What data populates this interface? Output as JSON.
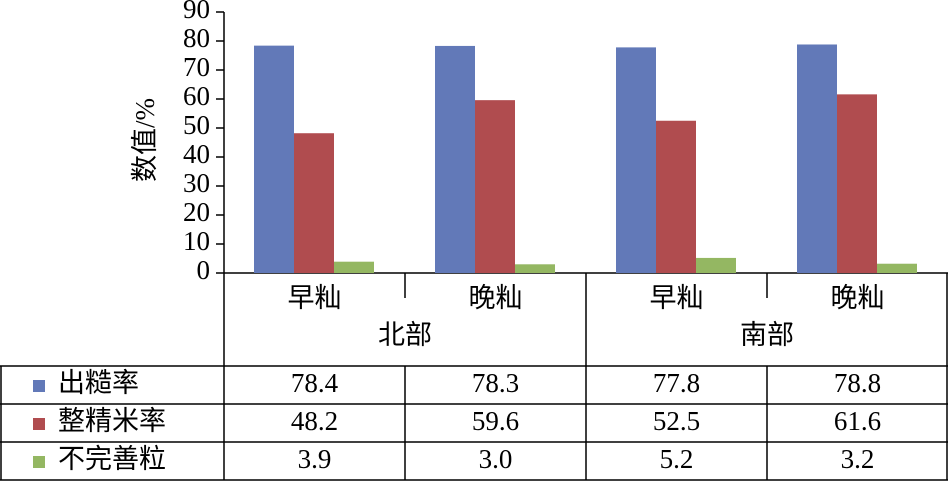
{
  "chart_data": {
    "type": "bar",
    "y_label": "数值/%",
    "categories": [
      "早籼",
      "晚籼",
      "早籼",
      "晚籼"
    ],
    "category_groups": [
      "北部",
      "南部"
    ],
    "series": [
      {
        "name": "出糙率",
        "color": "#6279b8",
        "values": [
          78.4,
          78.3,
          77.8,
          78.8
        ],
        "value_labels": [
          "78.4",
          "78.3",
          "77.8",
          "78.8"
        ]
      },
      {
        "name": "整精米率",
        "color": "#b04c4f",
        "values": [
          48.2,
          59.6,
          52.5,
          61.6
        ],
        "value_labels": [
          "48.2",
          "59.6",
          "52.5",
          "61.6"
        ]
      },
      {
        "name": "不完善粒",
        "color": "#94b762",
        "values": [
          3.9,
          3.0,
          5.2,
          3.2
        ],
        "value_labels": [
          "3.9",
          "3.0",
          "5.2",
          "3.2"
        ]
      }
    ],
    "ylim": [
      0,
      90
    ],
    "yticks": [
      0,
      10,
      20,
      30,
      40,
      50,
      60,
      70,
      80,
      90
    ]
  }
}
